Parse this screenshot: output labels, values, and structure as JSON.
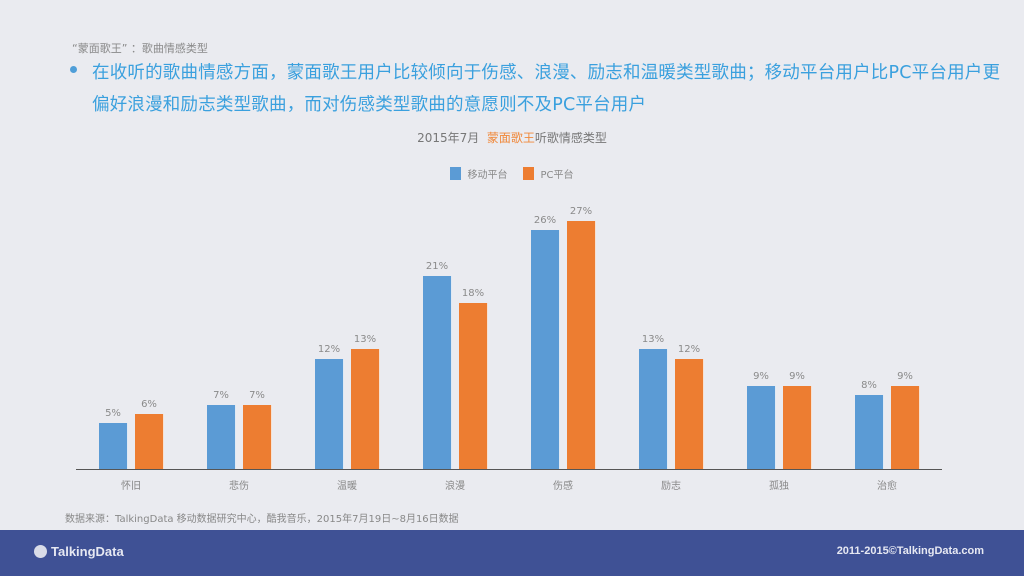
{
  "header": {
    "subtitle": "“蒙面歌王” ：歌曲情感类型",
    "summary": "在收听的歌曲情感方面，蒙面歌王用户比较倾向于伤感、浪漫、励志和温暖类型歌曲；移动平台用户比PC平台用户更偏好浪漫和励志类型歌曲，而对伤感类型歌曲的意愿则不及PC平台用户"
  },
  "chart_title": {
    "prefix": "2015年7月",
    "highlight": "蒙面歌王",
    "suffix": "听歌情感类型"
  },
  "legend": [
    {
      "label": "移动平台",
      "color": "#5b9bd5"
    },
    {
      "label": "PC平台",
      "color": "#ed7d31"
    }
  ],
  "chart_data": {
    "type": "bar",
    "title": "2015年7月 蒙面歌王听歌情感类型",
    "xlabel": "",
    "ylabel": "",
    "categories": [
      "怀旧",
      "悲伤",
      "温暖",
      "浪漫",
      "伤感",
      "励志",
      "孤独",
      "治愈"
    ],
    "series": [
      {
        "name": "移动平台",
        "color": "#5b9bd5",
        "values": [
          5,
          7,
          12,
          21,
          26,
          13,
          9,
          8
        ],
        "labels": [
          "5%",
          "7%",
          "12%",
          "21%",
          "26%",
          "13%",
          "9%",
          "8%"
        ]
      },
      {
        "name": "PC平台",
        "color": "#ed7d31",
        "values": [
          6,
          7,
          13,
          18,
          27,
          12,
          9,
          9
        ],
        "labels": [
          "6%",
          "7%",
          "13%",
          "18%",
          "27%",
          "12%",
          "9%",
          "9%"
        ]
      }
    ],
    "unit": "%",
    "legend_position": "top",
    "grid": false,
    "ylim": [
      0,
      30
    ]
  },
  "source": "数据来源：TalkingData 移动数据研究中心，酷我音乐，2015年7月19日~8月16日数据",
  "footer": {
    "logo": "TalkingData",
    "copyright": "2011-2015©TalkingData.com"
  }
}
